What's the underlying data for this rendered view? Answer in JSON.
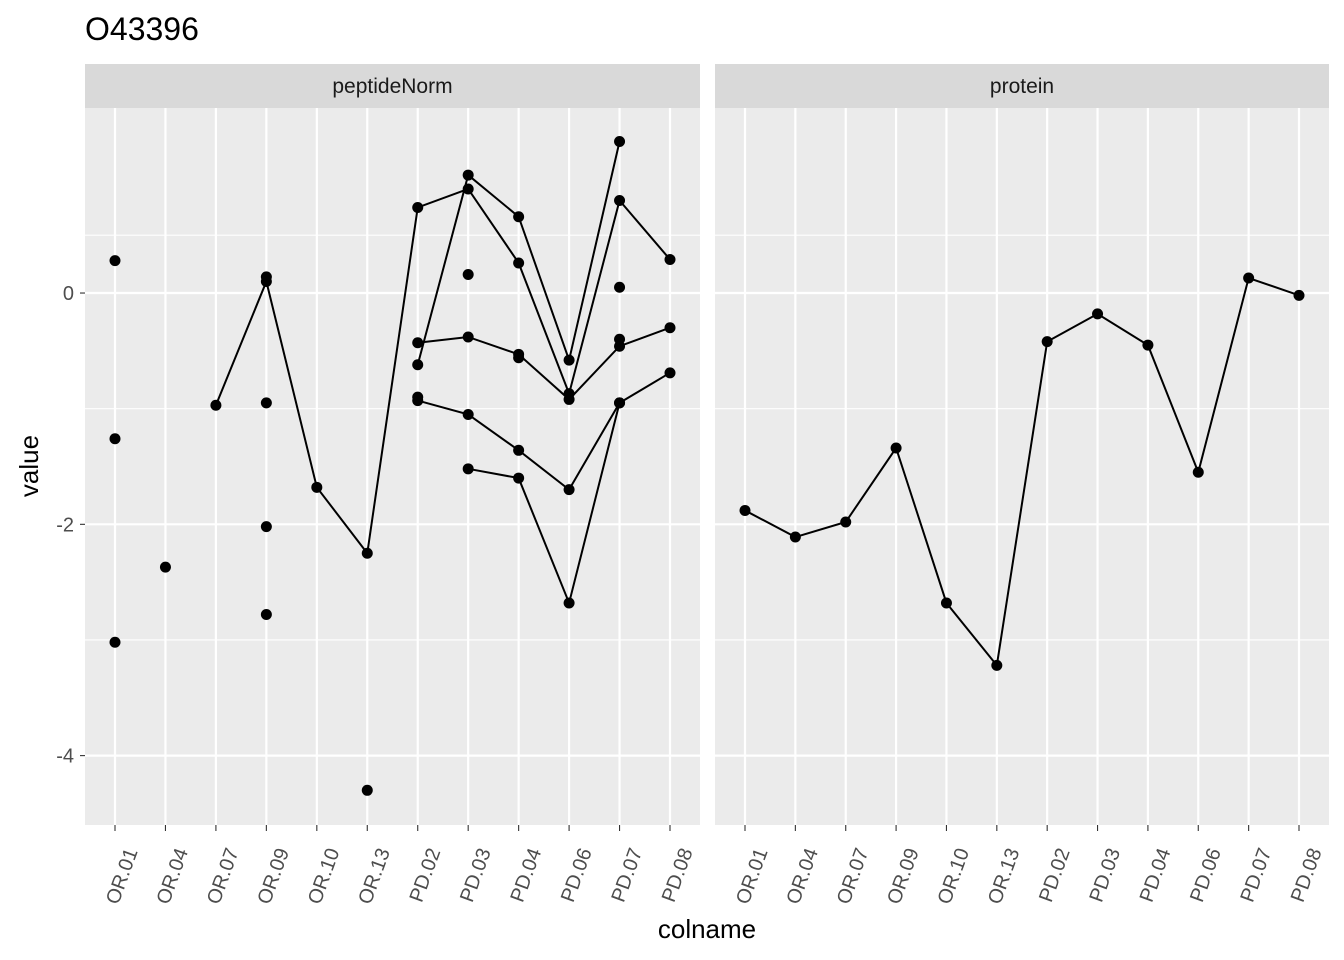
{
  "chart_data": {
    "type": "line",
    "title": "O43396",
    "xlabel": "colname",
    "ylabel": "value",
    "ylim": [
      -4.6,
      1.6
    ],
    "y_ticks": [
      0,
      -2,
      -4
    ],
    "y_tick_labels": [
      "0",
      "-2",
      "-4"
    ],
    "grid": true,
    "categories": [
      "OR.01",
      "OR.04",
      "OR.07",
      "OR.09",
      "OR.10",
      "OR.13",
      "PD.02",
      "PD.03",
      "PD.04",
      "PD.06",
      "PD.07",
      "PD.08"
    ],
    "panels": [
      {
        "name": "peptideNorm",
        "series": [
          {
            "values": [
              null,
              null,
              -0.97,
              0.1,
              -1.68,
              -2.25,
              0.74,
              0.9,
              0.26,
              -0.87,
              0.8,
              0.29
            ]
          },
          {
            "values": [
              null,
              null,
              null,
              null,
              null,
              null,
              -0.62,
              1.02,
              0.66,
              -0.58,
              1.31,
              null
            ]
          },
          {
            "values": [
              null,
              null,
              null,
              null,
              null,
              null,
              -0.43,
              -0.38,
              -0.53,
              -0.92,
              -0.46,
              -0.3
            ]
          },
          {
            "values": [
              null,
              null,
              null,
              null,
              null,
              null,
              -0.93,
              -1.05,
              -1.36,
              -1.7,
              -0.95,
              -0.69
            ]
          },
          {
            "values": [
              null,
              null,
              null,
              null,
              null,
              null,
              null,
              -1.52,
              -1.6,
              -2.68,
              -0.95,
              null
            ]
          },
          {
            "values": [
              null,
              null,
              null,
              null,
              null,
              null,
              -0.9,
              null,
              -0.56,
              null,
              -0.4,
              null
            ]
          }
        ],
        "points": [
          [
            "OR.01",
            0.28
          ],
          [
            "OR.01",
            -1.26
          ],
          [
            "OR.01",
            -3.02
          ],
          [
            "OR.04",
            -2.37
          ],
          [
            "OR.09",
            0.14
          ],
          [
            "OR.09",
            -0.95
          ],
          [
            "OR.09",
            -2.02
          ],
          [
            "OR.09",
            -2.78
          ],
          [
            "OR.13",
            -4.3
          ],
          [
            "PD.03",
            0.16
          ],
          [
            "PD.07",
            0.05
          ]
        ]
      },
      {
        "name": "protein",
        "series": [
          {
            "values": [
              -1.88,
              -2.11,
              -1.98,
              -1.34,
              -2.68,
              -3.22,
              -0.42,
              -0.18,
              -0.45,
              -1.55,
              0.13,
              -0.02
            ]
          }
        ],
        "points": []
      }
    ]
  }
}
